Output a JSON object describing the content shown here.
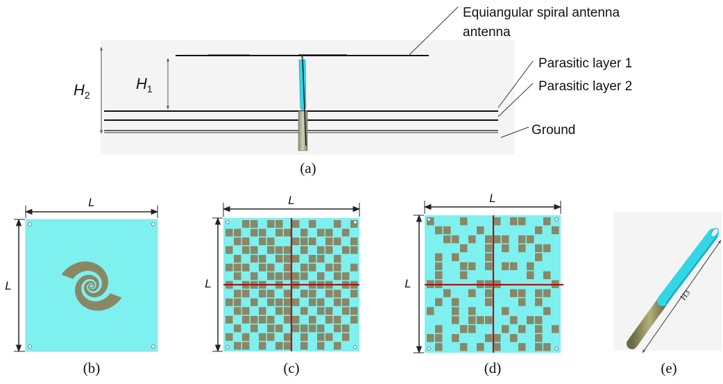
{
  "colors": {
    "patch": "#7ef0f0",
    "metal": "#8a8766",
    "divider": "#b01010",
    "panel_bg": "#f4f4f4",
    "probe": "#33d6e6",
    "feed": "#a8a58a"
  },
  "side_view": {
    "label_antenna": "Equiangular spiral antenna",
    "label_antenna_line2": "antenna",
    "label_layer1": "Parasitic layer 1",
    "label_layer2": "Parasitic layer 2",
    "label_ground": "Ground",
    "h1_main": "H",
    "h1_sub": "1",
    "h2_main": "H",
    "h2_sub": "2",
    "caption": "(a)"
  },
  "spiral_panel": {
    "dim_top": "L",
    "dim_left": "L",
    "caption": "(b)"
  },
  "layer1_panel": {
    "dim_top": "L",
    "dim_left": "L",
    "caption": "(c)"
  },
  "layer2_panel": {
    "dim_top": "L",
    "dim_left": "L",
    "caption": "(d)"
  },
  "probe_panel": {
    "dim": "H3",
    "caption": "(e)"
  },
  "layer1_pattern": [
    "0011011010100101",
    "1101101101011010",
    "0110110011101101",
    "1011011101011011",
    "0101101110110100",
    "1110110101101101",
    "0101011111010110",
    "1011101010111011",
    "0110110101101101",
    "1101011110110110",
    "0110101101011011",
    "1011110110101101",
    "0101011011110110",
    "1010110101011010",
    "0110101101010100"
  ],
  "layer2_pattern": [
    "1000100010110010",
    "0110001000000101",
    "0011010111011000",
    "0000100101010110",
    "0101000100000100",
    "0100110101101000",
    "0100100000001010",
    "1100001110000001",
    "0010010100110110",
    "0101000100010100",
    "1001010001000010",
    "0001011100101100",
    "0100110001010101",
    "1101000110100100",
    "0100101010010110"
  ]
}
